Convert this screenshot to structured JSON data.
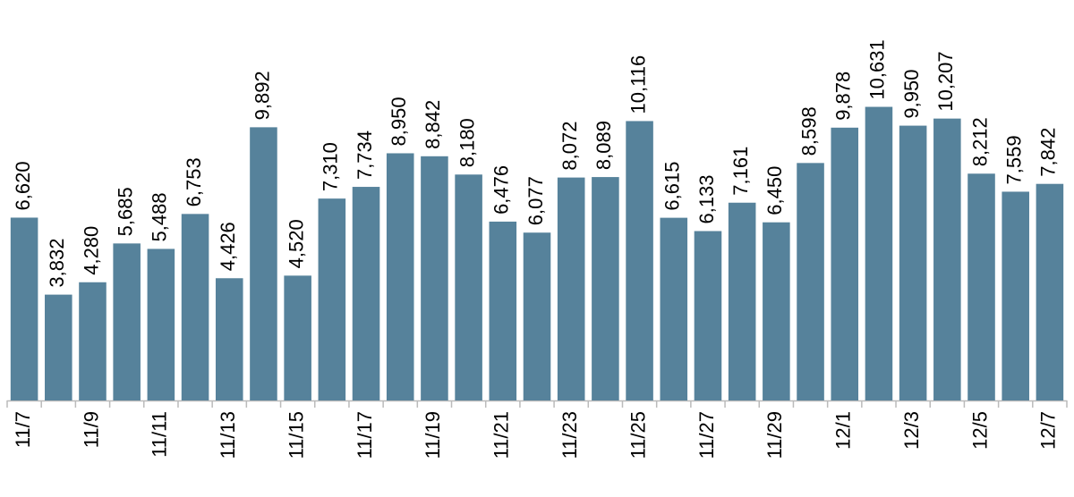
{
  "chart_data": {
    "type": "bar",
    "categories": [
      "11/7",
      null,
      "11/9",
      null,
      "11/11",
      null,
      "11/13",
      null,
      "11/15",
      null,
      "11/17",
      null,
      "11/19",
      null,
      "11/21",
      null,
      "11/23",
      null,
      "11/25",
      null,
      "11/27",
      null,
      "11/29",
      null,
      "12/1",
      null,
      "12/3",
      null,
      "12/5",
      null,
      "12/7"
    ],
    "values": [
      6620,
      3832,
      4280,
      5685,
      5488,
      6753,
      4426,
      9892,
      4520,
      7310,
      7734,
      8950,
      8842,
      8180,
      6476,
      6077,
      8072,
      8089,
      10116,
      6615,
      6133,
      7161,
      6450,
      8598,
      9878,
      10631,
      9950,
      10207,
      8212,
      7559,
      7842
    ],
    "value_labels": [
      "6,620",
      "3,832",
      "4,280",
      "5,685",
      "5,488",
      "6,753",
      "4,426",
      "9,892",
      "4,520",
      "7,310",
      "7,734",
      "8,950",
      "8,842",
      "8,180",
      "6,476",
      "6,077",
      "8,072",
      "8,089",
      "10,116",
      "6,615",
      "6,133",
      "7,161",
      "6,450",
      "8,598",
      "9,878",
      "10,631",
      "9,950",
      "10,207",
      "8,212",
      "7,559",
      "7,842"
    ],
    "color": "#56829b",
    "ylim": [
      0,
      14500
    ]
  }
}
